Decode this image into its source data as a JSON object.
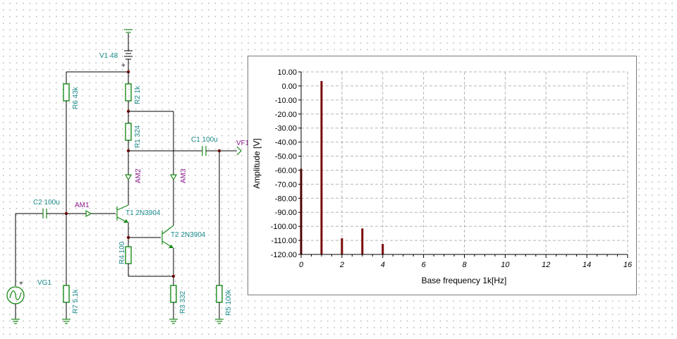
{
  "schematic": {
    "components": {
      "v1": "V1 48",
      "r2": "R2 1k",
      "r6": "R6 43k",
      "r1": "R1 324",
      "c1": "C1 100u",
      "c2": "C2 100u",
      "t1": "T1 2N3904",
      "t2": "T2 2N3904",
      "r4": "R4 100",
      "r7": "R7 5.1k",
      "r3": "R3 332",
      "r5": "R5 100k",
      "vg1": "VG1"
    },
    "probes": {
      "am1": "AM1",
      "am2": "AM2",
      "am3": "AM3",
      "vf1": "VF1"
    },
    "plus_sign": "+",
    "colors": {
      "component": "#1a8a8a",
      "probe": "#8a1a8a",
      "wire": "#000000",
      "part_body": "#1a8a1a"
    }
  },
  "chart_data": {
    "type": "bar",
    "xlabel": "Base frequency 1k[Hz]",
    "ylabel": "Amplitude [V]",
    "xlim": [
      0,
      16
    ],
    "ylim": [
      -120,
      10
    ],
    "xticks": [
      0,
      2,
      4,
      6,
      8,
      10,
      12,
      14,
      16
    ],
    "yticks": [
      10,
      0,
      -10,
      -20,
      -30,
      -40,
      -50,
      -60,
      -70,
      -80,
      -90,
      -100,
      -110,
      -120
    ],
    "xtick_labels": [
      "0",
      "2",
      "4",
      "6",
      "8",
      "10",
      "12",
      "14",
      "16"
    ],
    "ytick_labels": [
      "10.00",
      "0.00",
      "-10.00",
      "-20.00",
      "-30.00",
      "-40.00",
      "-50.00",
      "-60.00",
      "-70.00",
      "-80.00",
      "-90.00",
      "-100.00",
      "-110.00",
      "-120.00"
    ],
    "grid": true,
    "bar_color": "#7a0a0a",
    "x": [
      0,
      1,
      2,
      3,
      4
    ],
    "values": [
      -59,
      3.5,
      -108.5,
      -101.5,
      -112.5
    ]
  }
}
